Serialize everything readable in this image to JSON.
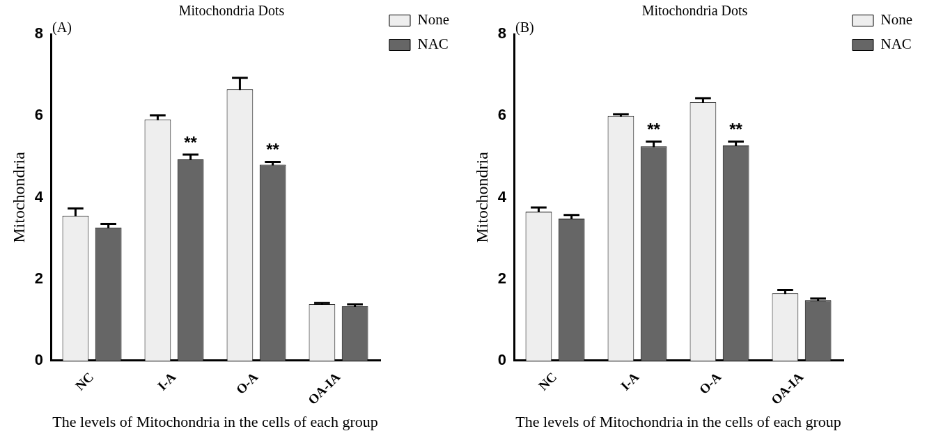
{
  "chart_data": [
    {
      "type": "bar",
      "title": "Mitochondria Dots",
      "xlabel": "The levels of Mitochondria in the cells of each group",
      "ylabel": "Mitochondria",
      "categories": [
        "NC",
        "I-A",
        "O-A",
        "OA-IA"
      ],
      "series": [
        {
          "name": "None",
          "color": "#eeeeee",
          "values": [
            3.55,
            5.91,
            6.65,
            1.38
          ],
          "errors": [
            0.18,
            0.1,
            0.28,
            0.03
          ]
        },
        {
          "name": "NAC",
          "color": "#666666",
          "values": [
            3.26,
            4.93,
            4.8,
            1.33
          ],
          "errors": [
            0.09,
            0.12,
            0.07,
            0.05
          ],
          "value_labels": [
            null,
            "**",
            "**",
            null
          ]
        }
      ],
      "ylim": [
        0,
        8
      ],
      "yticks": [
        0,
        2,
        4,
        6,
        8
      ],
      "grid": false,
      "legend": "top right",
      "annotations": [
        "(A)"
      ]
    },
    {
      "type": "bar",
      "title": "Mitochondria Dots",
      "xlabel": "The levels of Mitochondria in the cells of each group",
      "ylabel": "Mitochondria",
      "categories": [
        "NC",
        "I-A",
        "O-A",
        "OA-IA"
      ],
      "series": [
        {
          "name": "None",
          "color": "#eeeeee",
          "values": [
            3.65,
            5.99,
            6.33,
            1.65
          ],
          "errors": [
            0.1,
            0.05,
            0.1,
            0.08
          ]
        },
        {
          "name": "NAC",
          "color": "#666666",
          "values": [
            3.48,
            5.25,
            5.27,
            1.48
          ],
          "errors": [
            0.09,
            0.12,
            0.1,
            0.04
          ],
          "value_labels": [
            null,
            "**",
            "**",
            null
          ]
        }
      ],
      "ylim": [
        0,
        8
      ],
      "yticks": [
        0,
        2,
        4,
        6,
        8
      ],
      "grid": false,
      "legend": "top right",
      "annotations": [
        "(B)"
      ]
    }
  ]
}
